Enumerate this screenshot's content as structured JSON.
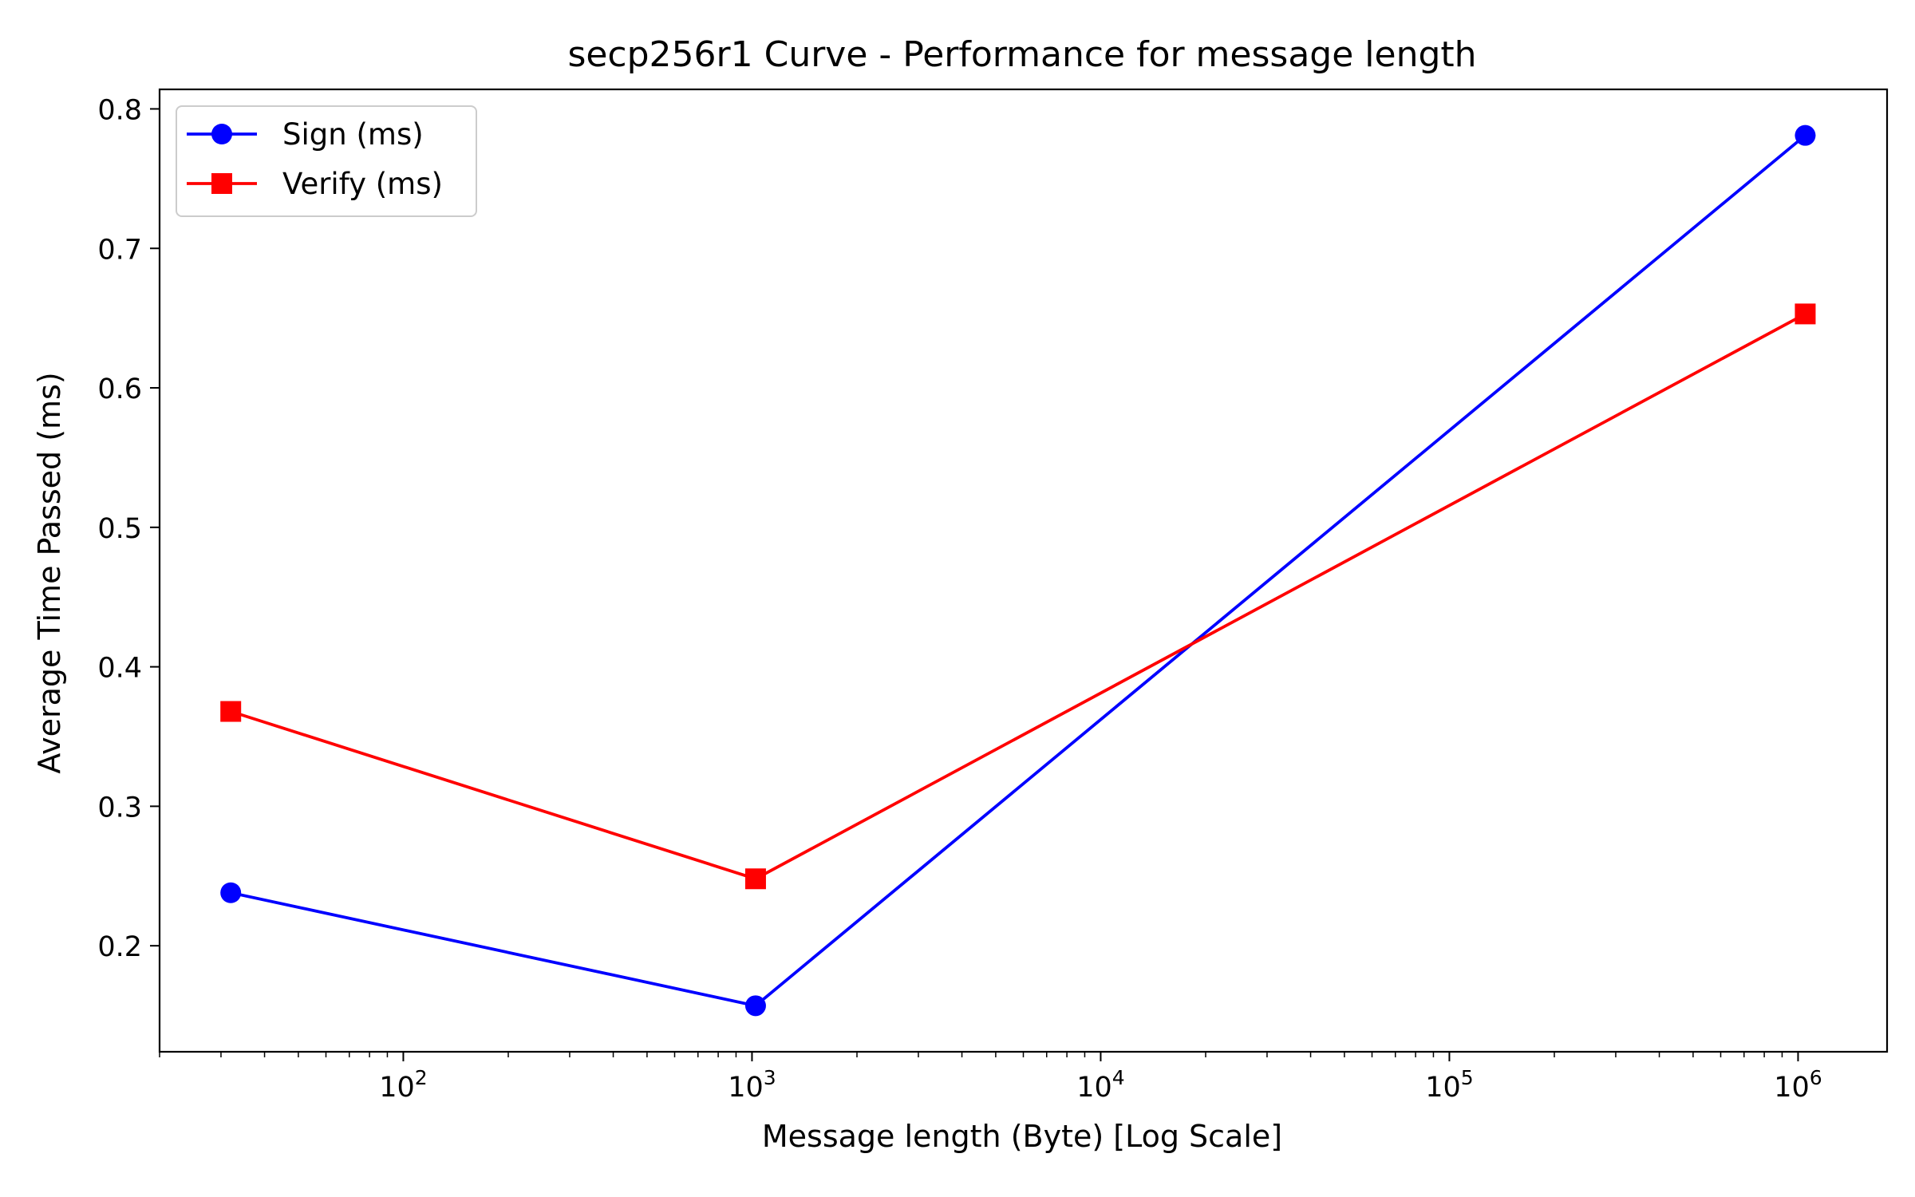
{
  "chart_data": {
    "type": "line",
    "title": "secp256r1 Curve - Performance for message length",
    "xlabel": "Message length (Byte) [Log Scale]",
    "ylabel": "Average Time Passed (ms)",
    "x_scale": "log",
    "xlim": [
      20,
      1800000
    ],
    "ylim": [
      0.124,
      0.814
    ],
    "x": [
      32,
      1024,
      1048576
    ],
    "x_major_ticks": [
      {
        "value": 100,
        "base": "10",
        "exp": "2"
      },
      {
        "value": 1000,
        "base": "10",
        "exp": "3"
      },
      {
        "value": 10000,
        "base": "10",
        "exp": "4"
      },
      {
        "value": 100000,
        "base": "10",
        "exp": "5"
      },
      {
        "value": 1000000,
        "base": "10",
        "exp": "6"
      }
    ],
    "y_ticks": [
      {
        "value": 0.2,
        "label": "0.2"
      },
      {
        "value": 0.3,
        "label": "0.3"
      },
      {
        "value": 0.4,
        "label": "0.4"
      },
      {
        "value": 0.5,
        "label": "0.5"
      },
      {
        "value": 0.6,
        "label": "0.6"
      },
      {
        "value": 0.7,
        "label": "0.7"
      },
      {
        "value": 0.8,
        "label": "0.8"
      }
    ],
    "series": [
      {
        "name": "Sign (ms)",
        "color": "#0000ff",
        "marker": "circle",
        "values": [
          0.238,
          0.157,
          0.781
        ]
      },
      {
        "name": "Verify (ms)",
        "color": "#ff0000",
        "marker": "square",
        "values": [
          0.368,
          0.248,
          0.653
        ]
      }
    ],
    "legend": "top-left",
    "grid": false
  }
}
